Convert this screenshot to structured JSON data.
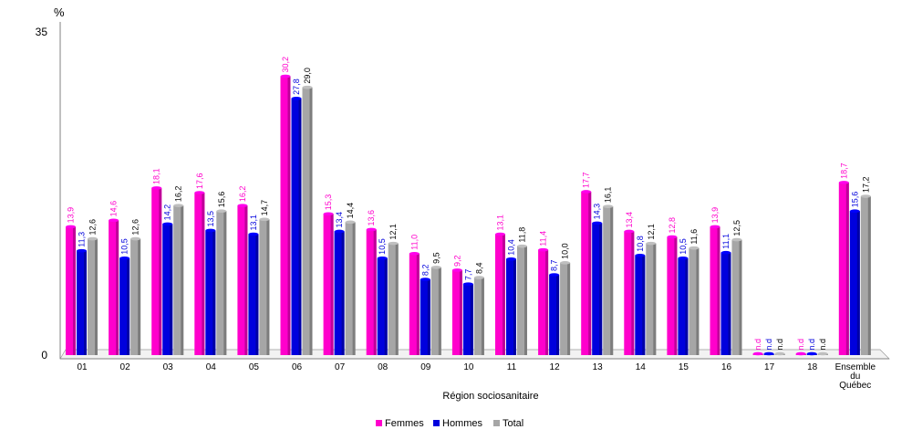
{
  "chart_data": {
    "type": "bar",
    "unit_label": "%",
    "xlabel": "Région sociosanitaire",
    "ylabel": "",
    "ylim": [
      0,
      35
    ],
    "y_ticks": [
      "0",
      "35"
    ],
    "grid": false,
    "legend_position": "bottom",
    "categories": [
      "01",
      "02",
      "03",
      "04",
      "05",
      "06",
      "07",
      "08",
      "09",
      "10",
      "11",
      "12",
      "13",
      "14",
      "15",
      "16",
      "17",
      "18",
      "Ensemble du Québec"
    ],
    "category_lines": [
      [
        "01"
      ],
      [
        "02"
      ],
      [
        "03"
      ],
      [
        "04"
      ],
      [
        "05"
      ],
      [
        "06"
      ],
      [
        "07"
      ],
      [
        "08"
      ],
      [
        "09"
      ],
      [
        "10"
      ],
      [
        "11"
      ],
      [
        "12"
      ],
      [
        "13"
      ],
      [
        "14"
      ],
      [
        "15"
      ],
      [
        "16"
      ],
      [
        "17"
      ],
      [
        "18"
      ],
      [
        "Ensemble",
        "du",
        "Québec"
      ]
    ],
    "series": [
      {
        "name": "Femmes",
        "color": "#ff00cc",
        "label_color": "#ff00cc",
        "values": [
          13.9,
          14.6,
          18.1,
          17.6,
          16.2,
          30.2,
          15.3,
          13.6,
          11.0,
          9.2,
          13.1,
          11.4,
          17.7,
          13.4,
          12.8,
          13.9,
          null,
          null,
          18.7
        ],
        "labels": [
          "13,9",
          "14,6",
          "18,1",
          "17,6",
          "16,2",
          "30,2",
          "15,3",
          "13,6",
          "11,0",
          "9,2",
          "13,1",
          "11,4",
          "17,7",
          "13,4",
          "12,8",
          "13,9",
          "n.d",
          "n.d",
          "18,7"
        ]
      },
      {
        "name": "Hommes",
        "color": "#0000dd",
        "label_color": "#0000dd",
        "values": [
          11.3,
          10.5,
          14.2,
          13.5,
          13.1,
          27.8,
          13.4,
          10.5,
          8.2,
          7.7,
          10.4,
          8.7,
          14.3,
          10.8,
          10.5,
          11.1,
          null,
          null,
          15.6
        ],
        "labels": [
          "11,3",
          "10,5",
          "14,2",
          "13,5",
          "13,1",
          "27,8",
          "13,4",
          "10,5",
          "8,2",
          "7,7",
          "10,4",
          "8,7",
          "14,3",
          "10,8",
          "10,5",
          "11,1",
          "n.d",
          "n.d",
          "15,6"
        ]
      },
      {
        "name": "Total",
        "color": "#a6a6a6",
        "label_color": "#000000",
        "values": [
          12.6,
          12.6,
          16.2,
          15.6,
          14.7,
          29.0,
          14.4,
          12.1,
          9.5,
          8.4,
          11.8,
          10.0,
          16.1,
          12.1,
          11.6,
          12.5,
          null,
          null,
          17.2
        ],
        "labels": [
          "12,6",
          "12,6",
          "16,2",
          "15,6",
          "14,7",
          "29,0",
          "14,4",
          "12,1",
          "9,5",
          "8,4",
          "11,8",
          "10,0",
          "16,1",
          "12,1",
          "11,6",
          "12,5",
          "n.d",
          "n.d",
          "17,2"
        ]
      }
    ]
  }
}
